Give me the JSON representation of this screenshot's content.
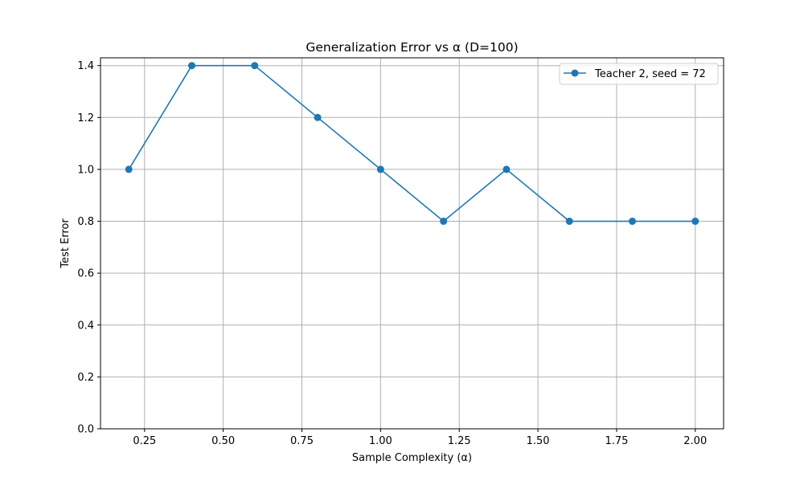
{
  "chart_data": {
    "type": "line",
    "title": "Generalization Error vs α (D=100)",
    "xlabel": "Sample Complexity (α)",
    "ylabel": "Test Error",
    "xlim": [
      0.11,
      2.09
    ],
    "ylim": [
      0,
      1.43
    ],
    "xticks": [
      0.25,
      0.5,
      0.75,
      1.0,
      1.25,
      1.5,
      1.75,
      2.0
    ],
    "xtick_labels": [
      "0.25",
      "0.50",
      "0.75",
      "1.00",
      "1.25",
      "1.50",
      "1.75",
      "2.00"
    ],
    "yticks": [
      0,
      0.2,
      0.4,
      0.6,
      0.8,
      1.0,
      1.2,
      1.4
    ],
    "ytick_labels": [
      "0.0",
      "0.2",
      "0.4",
      "0.6",
      "0.8",
      "1.0",
      "1.2",
      "1.4"
    ],
    "grid": true,
    "legend_position": "top-right",
    "series": [
      {
        "name": "Teacher 2, seed = 72",
        "color": "#1f77b4",
        "marker": "circle",
        "x": [
          0.2,
          0.4,
          0.6,
          0.8,
          1.0,
          1.2,
          1.4,
          1.6,
          1.8,
          2.0
        ],
        "y": [
          1.0,
          1.4,
          1.4,
          1.2,
          1.0,
          0.8,
          1.0,
          0.8,
          0.8,
          0.8
        ]
      }
    ]
  }
}
